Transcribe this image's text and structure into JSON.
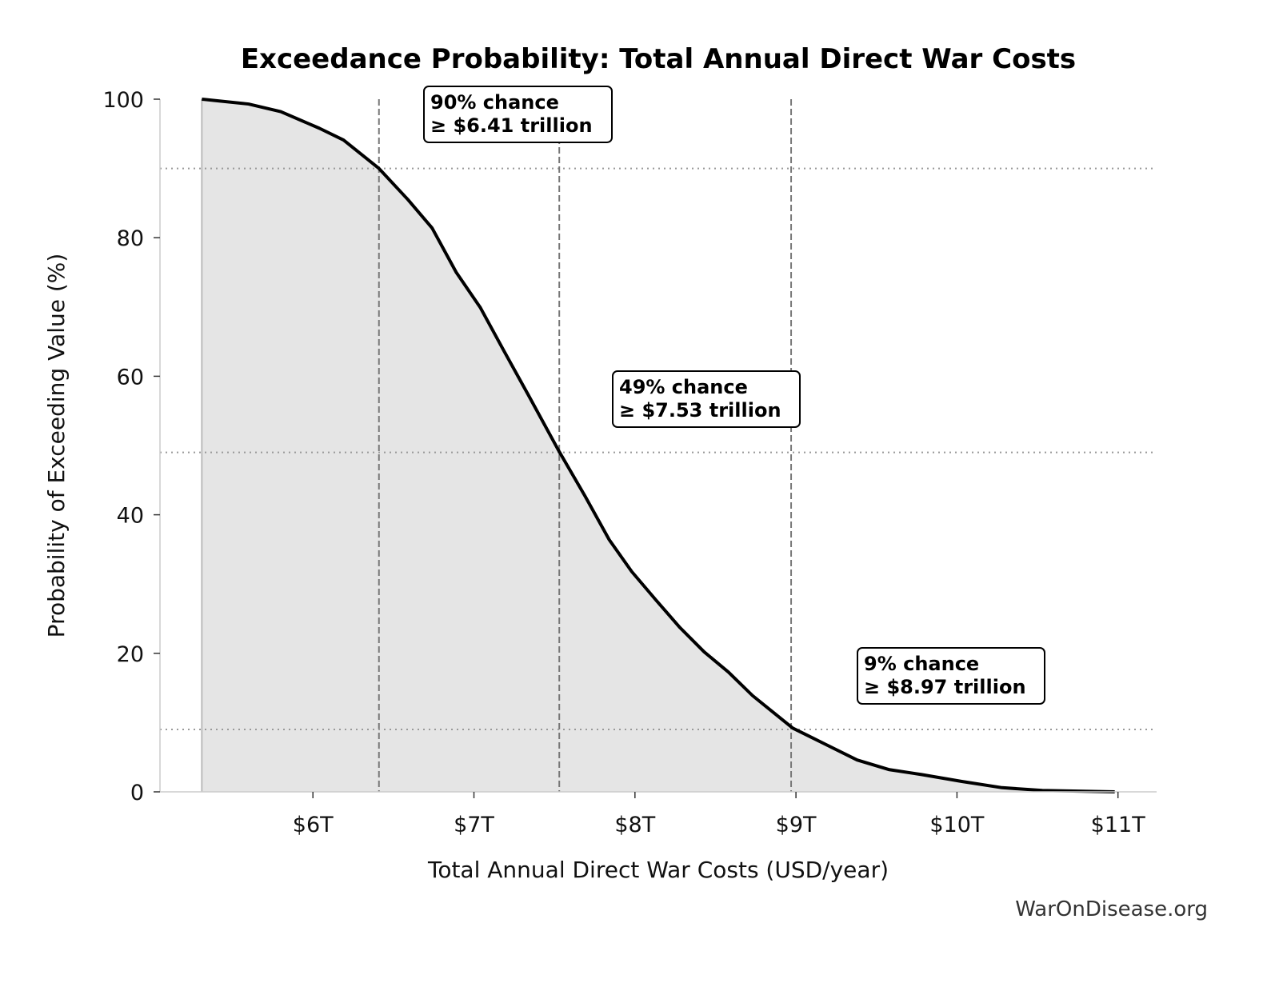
{
  "chart_data": {
    "type": "area",
    "title": "Exceedance Probability: Total Annual Direct War Costs",
    "xlabel": "Total Annual Direct War Costs (USD/year)",
    "ylabel": "Probability of Exceeding Value (%)",
    "xlim": [
      5.05,
      11.24
    ],
    "ylim": [
      0,
      100
    ],
    "x_unit": "trillion USD",
    "x_ticks": [
      6,
      7,
      8,
      9,
      10,
      11
    ],
    "x_tick_labels": [
      "$6T",
      "$7T",
      "$8T",
      "$9T",
      "$10T",
      "$11T"
    ],
    "y_ticks": [
      0,
      20,
      40,
      60,
      80,
      100
    ],
    "y_tick_labels": [
      "0",
      "20",
      "40",
      "60",
      "80",
      "100"
    ],
    "grid": false,
    "line_color": "#000000",
    "fill_color": "#e5e5e5",
    "series": [
      {
        "x": [
          5.31,
          5.6,
          5.8,
          6.04,
          6.19,
          6.41,
          6.59,
          6.74,
          6.89,
          7.04,
          7.19,
          7.34,
          7.53,
          7.69,
          7.84,
          7.98,
          8.13,
          8.28,
          8.43,
          8.58,
          8.73,
          8.98,
          9.18,
          9.38,
          9.58,
          9.78,
          10.03,
          10.28,
          10.53,
          10.98
        ],
        "y": [
          100,
          99.3,
          98.2,
          95.8,
          94.1,
          90,
          85.5,
          81.4,
          75,
          69.9,
          63.5,
          57.2,
          49.1,
          42.7,
          36.4,
          31.8,
          27.7,
          23.7,
          20.2,
          17.3,
          13.9,
          9.2,
          6.9,
          4.6,
          3.2,
          2.5,
          1.5,
          0.6,
          0.2,
          0
        ]
      }
    ],
    "thresholds": [
      {
        "x": 6.41,
        "y": 90,
        "line1": "90% chance",
        "line2": "≥ $6.41 trillion"
      },
      {
        "x": 7.53,
        "y": 49,
        "line1": "49% chance",
        "line2": "≥ $7.53 trillion"
      },
      {
        "x": 8.97,
        "y": 9,
        "line1": "9% chance",
        "line2": "≥ $8.97 trillion"
      }
    ]
  },
  "watermark": "WarOnDisease.org"
}
